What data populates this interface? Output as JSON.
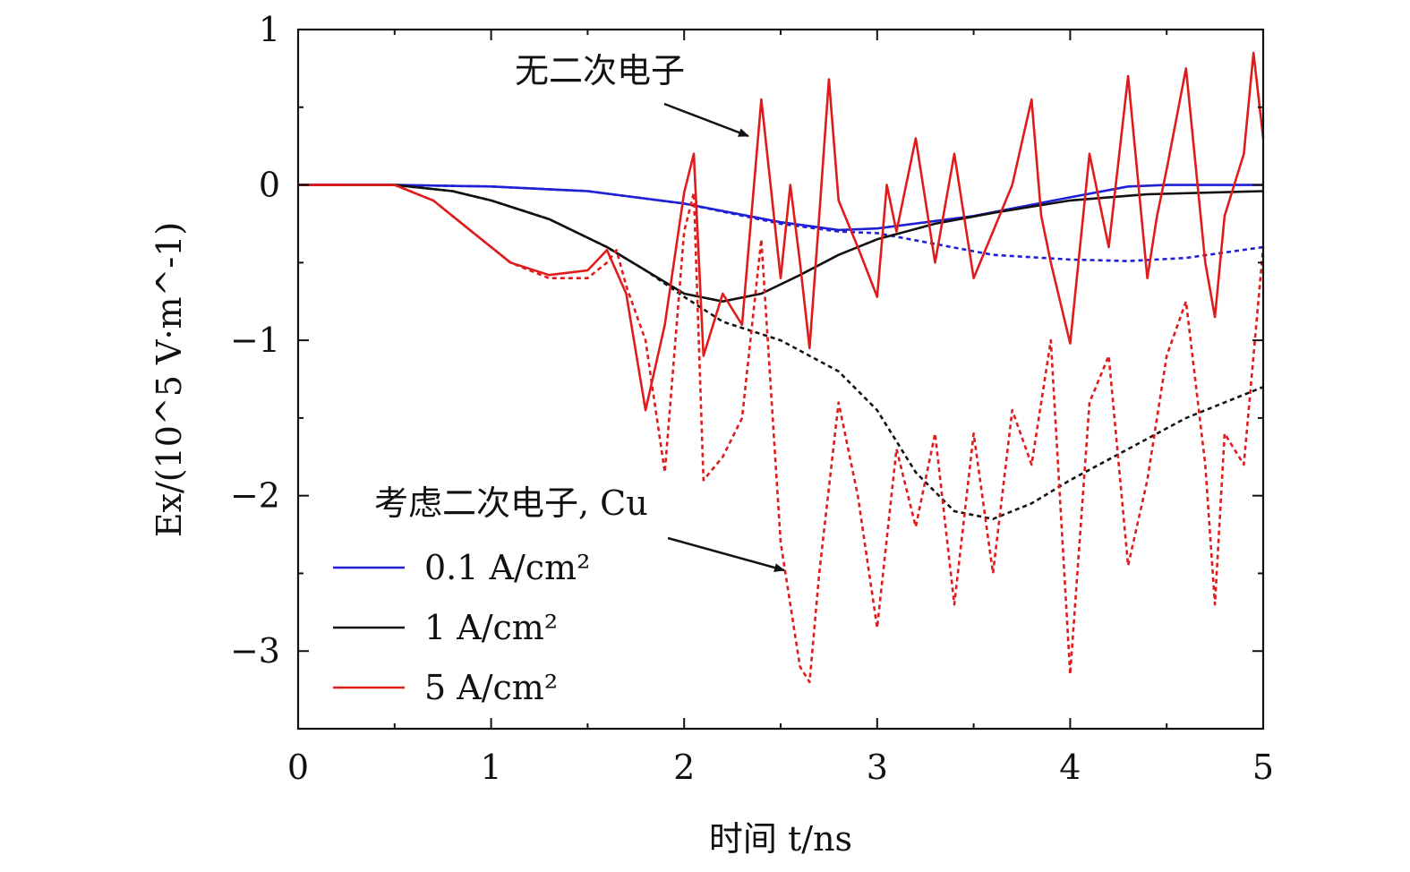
{
  "chart_data": {
    "type": "line",
    "xlabel": "时间 t/ns",
    "ylabel": "Ex/(10^5 V·m^-1)",
    "xlim": [
      0,
      5
    ],
    "ylim": [
      -3.5,
      1
    ],
    "x_ticks": [
      "0",
      "1",
      "2",
      "3",
      "4",
      "5"
    ],
    "y_ticks": [
      "1",
      "0",
      "−1",
      "−2",
      "−3"
    ],
    "grid": false,
    "legend_position": "lower-left",
    "annotations": {
      "no_secondary": "无二次电子",
      "with_secondary": "考虑二次电子, Cu"
    },
    "legend_entries": [
      {
        "label": "0.1 A/cm²",
        "color": "#1f1fd6"
      },
      {
        "label": "1 A/cm²",
        "color": "#111111"
      },
      {
        "label": "5 A/cm²",
        "color": "#e01b1b"
      }
    ],
    "series": [
      {
        "name": "0.1 A/cm²",
        "secondary": "none",
        "style": "solid",
        "color": "#1f1fd6",
        "x": [
          0,
          0.5,
          1.0,
          1.5,
          2.0,
          2.5,
          2.8,
          3.0,
          3.5,
          4.0,
          4.3,
          4.5,
          5.0
        ],
        "y": [
          0,
          0,
          -0.01,
          -0.04,
          -0.12,
          -0.24,
          -0.29,
          -0.28,
          -0.2,
          -0.08,
          -0.01,
          0,
          0
        ]
      },
      {
        "name": "0.1 A/cm²",
        "secondary": "Cu",
        "style": "dashed",
        "color": "#1f1fd6",
        "x": [
          0,
          0.5,
          1.0,
          1.5,
          2.0,
          2.5,
          2.8,
          3.0,
          3.3,
          3.6,
          4.0,
          4.3,
          4.6,
          5.0
        ],
        "y": [
          0,
          0,
          -0.01,
          -0.04,
          -0.12,
          -0.25,
          -0.3,
          -0.31,
          -0.38,
          -0.45,
          -0.48,
          -0.49,
          -0.47,
          -0.4
        ]
      },
      {
        "name": "1 A/cm²",
        "secondary": "none",
        "style": "solid",
        "color": "#111111",
        "x": [
          0,
          0.5,
          0.8,
          1.0,
          1.3,
          1.6,
          1.8,
          2.0,
          2.2,
          2.4,
          2.6,
          2.8,
          3.0,
          3.3,
          3.6,
          4.0,
          4.4,
          5.0
        ],
        "y": [
          0,
          0,
          -0.04,
          -0.1,
          -0.22,
          -0.4,
          -0.55,
          -0.7,
          -0.75,
          -0.7,
          -0.58,
          -0.45,
          -0.35,
          -0.25,
          -0.18,
          -0.1,
          -0.06,
          -0.04
        ]
      },
      {
        "name": "1 A/cm²",
        "secondary": "Cu",
        "style": "dashed",
        "color": "#111111",
        "x": [
          0,
          0.5,
          0.8,
          1.0,
          1.3,
          1.6,
          1.8,
          2.0,
          2.2,
          2.5,
          2.8,
          3.0,
          3.2,
          3.4,
          3.6,
          3.8,
          4.0,
          4.3,
          4.6,
          5.0
        ],
        "y": [
          0,
          0,
          -0.04,
          -0.1,
          -0.22,
          -0.4,
          -0.55,
          -0.72,
          -0.88,
          -1.0,
          -1.2,
          -1.45,
          -1.85,
          -2.1,
          -2.15,
          -2.05,
          -1.9,
          -1.7,
          -1.5,
          -1.3
        ]
      },
      {
        "name": "5 A/cm²",
        "secondary": "none",
        "style": "solid",
        "color": "#e01b1b",
        "x": [
          0,
          0.5,
          0.7,
          0.9,
          1.1,
          1.3,
          1.5,
          1.6,
          1.7,
          1.8,
          1.9,
          2.0,
          2.05,
          2.1,
          2.2,
          2.3,
          2.4,
          2.5,
          2.55,
          2.6,
          2.65,
          2.7,
          2.75,
          2.8,
          2.9,
          3.0,
          3.05,
          3.1,
          3.2,
          3.3,
          3.4,
          3.5,
          3.6,
          3.7,
          3.8,
          3.85,
          3.9,
          4.0,
          4.1,
          4.2,
          4.3,
          4.4,
          4.45,
          4.5,
          4.6,
          4.7,
          4.75,
          4.8,
          4.9,
          4.95,
          5.0
        ],
        "y": [
          0,
          0,
          -0.1,
          -0.3,
          -0.5,
          -0.58,
          -0.55,
          -0.42,
          -0.7,
          -1.45,
          -0.9,
          -0.05,
          0.2,
          -1.1,
          -0.7,
          -0.9,
          0.55,
          -0.6,
          0.0,
          -0.5,
          -1.05,
          -0.2,
          0.68,
          -0.1,
          -0.4,
          -0.72,
          0.0,
          -0.3,
          0.3,
          -0.5,
          0.2,
          -0.6,
          -0.3,
          0.0,
          0.55,
          -0.2,
          -0.5,
          -1.02,
          0.2,
          -0.4,
          0.7,
          -0.6,
          -0.2,
          0.1,
          0.75,
          -0.5,
          -0.85,
          -0.2,
          0.2,
          0.85,
          0.3
        ]
      },
      {
        "name": "5 A/cm²",
        "secondary": "Cu",
        "style": "dashed",
        "color": "#e01b1b",
        "x": [
          0,
          0.5,
          0.7,
          0.9,
          1.1,
          1.3,
          1.5,
          1.6,
          1.65,
          1.7,
          1.8,
          1.9,
          2.0,
          2.05,
          2.1,
          2.2,
          2.3,
          2.4,
          2.5,
          2.6,
          2.65,
          2.7,
          2.8,
          2.9,
          3.0,
          3.1,
          3.2,
          3.3,
          3.4,
          3.5,
          3.6,
          3.7,
          3.8,
          3.9,
          4.0,
          4.1,
          4.2,
          4.3,
          4.4,
          4.5,
          4.6,
          4.7,
          4.75,
          4.8,
          4.9,
          5.0
        ],
        "y": [
          0,
          0,
          -0.1,
          -0.3,
          -0.5,
          -0.6,
          -0.6,
          -0.5,
          -0.42,
          -0.65,
          -1.0,
          -1.85,
          -0.3,
          -0.05,
          -1.9,
          -1.75,
          -1.5,
          -0.35,
          -2.3,
          -3.1,
          -3.2,
          -2.5,
          -1.4,
          -2.0,
          -2.85,
          -1.7,
          -2.2,
          -1.6,
          -2.7,
          -1.6,
          -2.5,
          -1.45,
          -1.8,
          -1.0,
          -3.15,
          -1.4,
          -1.1,
          -2.45,
          -1.9,
          -1.1,
          -0.75,
          -1.8,
          -2.7,
          -1.6,
          -1.8,
          -0.4
        ]
      }
    ]
  }
}
